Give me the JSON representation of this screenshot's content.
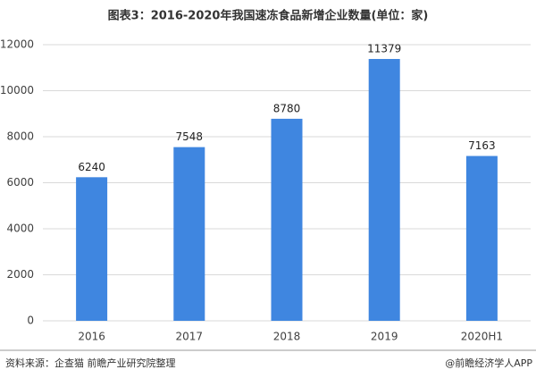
{
  "chart_data": {
    "type": "bar",
    "title": "图表3：2016-2020年我国速冻食品新增企业数量(单位：家)",
    "categories": [
      "2016",
      "2017",
      "2018",
      "2019",
      "2020H1"
    ],
    "values": [
      6240,
      7548,
      8780,
      11379,
      7163
    ],
    "color": "#3f86e0",
    "ylim": [
      0,
      12000
    ],
    "yticks": [
      0,
      2000,
      4000,
      6000,
      8000,
      10000,
      12000
    ],
    "grid": true,
    "source": "资料来源：企查猫 前瞻产业研究院整理",
    "credit": "@前瞻经济学人APP"
  }
}
